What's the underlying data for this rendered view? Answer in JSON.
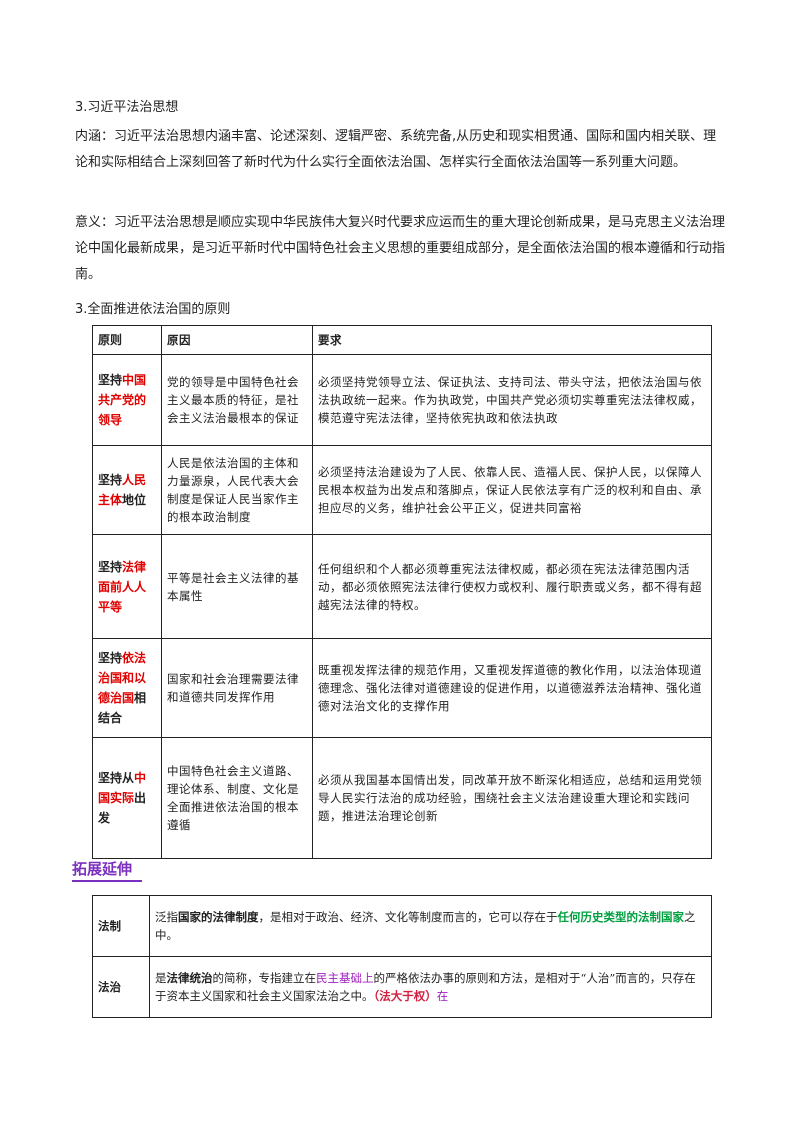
{
  "section1": {
    "title": "3.习近平法治思想",
    "paragraphs": [
      "内涵：习近平法治思想内涵丰富、论述深刻、逻辑严密、系统完备,从历史和现实相贯通、国际和国内相关联、理论和实际相结合上深刻回答了新时代为什么实行全面依法治国、怎样实行全面依法治国等一系列重大问题。",
      "意义：习近平法治思想是顺应实现中华民族伟大复兴时代要求应运而生的重大理论创新成果，是马克思主义法治理论中国化最新成果，是习近平新时代中国特色社会主义思想的重要组成部分，是全面依法治国的根本遵循和行动指南。"
    ]
  },
  "section2": {
    "title": "3.全面推进依法治国的原则",
    "table": {
      "header": [
        "原则",
        "原因",
        "要求"
      ],
      "rows": [
        {
          "principle": [
            {
              "text": "坚持",
              "style": "plain"
            },
            {
              "text": "中国共产党的领导",
              "style": "red"
            }
          ],
          "reason": "党的领导是中国特色社会主义最本质的特征，是社会主义法治最根本的保证",
          "requirement": "必须坚持党领导立法、保证执法、支持司法、带头守法，把依法治国与依法执政统一起来。作为执政党，中国共产党必须切实尊重宪法法律权威，模范遵守宪法法律，坚持依宪执政和依法执政"
        },
        {
          "principle": [
            {
              "text": "坚持",
              "style": "plain"
            },
            {
              "text": "人民主体",
              "style": "red"
            },
            {
              "text": "地位",
              "style": "plain"
            }
          ],
          "reason": "人民是依法治国的主体和力量源泉，人民代表大会制度是保证人民当家作主的根本政治制度",
          "requirement": "必须坚持法治建设为了人民、依靠人民、造福人民、保护人民，以保障人民根本权益为出发点和落脚点，保证人民依法享有广泛的权利和自由、承担应尽的义务，维护社会公平正义，促进共同富裕"
        },
        {
          "principle": [
            {
              "text": "坚持",
              "style": "plain"
            },
            {
              "text": "法律面前人人平等",
              "style": "red"
            }
          ],
          "reason": "平等是社会主义法律的基本属性",
          "requirement": "任何组织和个人都必须尊重宪法法律权威，都必须在宪法法律范围内活动，都必须依照宪法法律行使权力或权利、履行职责或义务，都不得有超越宪法法律的特权。"
        },
        {
          "principle": [
            {
              "text": "坚持",
              "style": "plain"
            },
            {
              "text": "依法治国和以德治国",
              "style": "red"
            },
            {
              "text": "相结合",
              "style": "plain"
            }
          ],
          "reason": "国家和社会治理需要法律和道德共同发挥作用",
          "requirement": "既重视发挥法律的规范作用，又重视发挥道德的教化作用，以法治体现道德理念、强化法律对道德建设的促进作用，以道德滋养法治精神、强化道德对法治文化的支撑作用"
        },
        {
          "principle": [
            {
              "text": "坚持从",
              "style": "plain"
            },
            {
              "text": "中国实际",
              "style": "red"
            },
            {
              "text": "出发",
              "style": "plain"
            }
          ],
          "reason": "中国特色社会主义道路、理论体系、制度、文化是全面推进依法治国的根本遵循",
          "requirement": "必须从我国基本国情出发，同改革开放不断深化相适应，总结和运用党领导人民实行法治的成功经验，围绕社会主义法治建设重大理论和实践问题，推进法治理论创新"
        }
      ]
    }
  },
  "extension": {
    "title": "拓展延伸",
    "rows": [
      {
        "term": "法制",
        "definition": [
          {
            "text": "泛指",
            "style": "plain"
          },
          {
            "text": "国家的法律制度",
            "style": "bold"
          },
          {
            "text": "，是相对于政治、经济、文化等制度而言的，它可以存在于",
            "style": "plain"
          },
          {
            "text": "任何历史类型的法制国家",
            "style": "green"
          },
          {
            "text": "之中。",
            "style": "plain"
          }
        ]
      },
      {
        "term": "法治",
        "definition": [
          {
            "text": "是",
            "style": "plain"
          },
          {
            "text": "法律统治",
            "style": "bold"
          },
          {
            "text": "的简称，专指建立在",
            "style": "plain"
          },
          {
            "text": "民主基础上",
            "style": "purple"
          },
          {
            "text": "的严格依法办事的原则和方法，是相对于“人治”而言的，只存在于资本主义国家和社会主义国家法治之中。",
            "style": "plain"
          },
          {
            "text": "（法大于权）",
            "style": "red"
          },
          {
            "text": "在",
            "style": "purple"
          }
        ]
      }
    ]
  }
}
